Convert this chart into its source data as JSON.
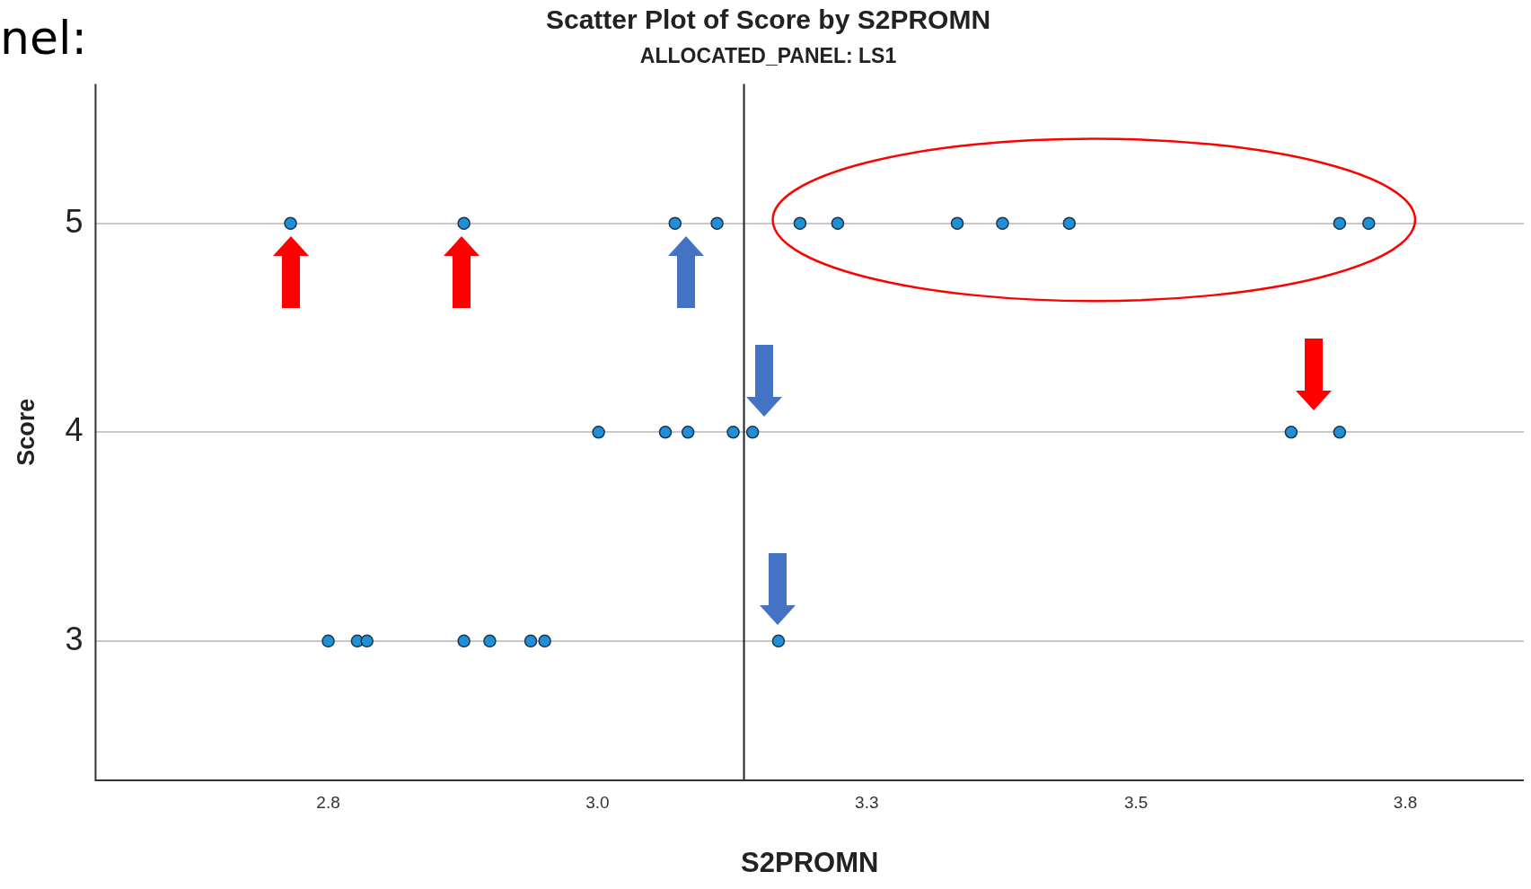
{
  "chart_data": {
    "type": "scatter",
    "title": "Scatter Plot of Score by S2PROMN",
    "subtitle": "ALLOCATED_PANEL: LS1",
    "xlabel": "S2PROMN",
    "ylabel": "Score",
    "annotations": [
      "nel:"
    ],
    "series": [
      {
        "color": "#1f8fd6",
        "x": [
          2.715,
          2.876,
          3.072,
          3.111,
          3.188,
          3.223,
          3.334,
          3.376,
          3.438,
          3.689,
          3.716,
          3.001,
          3.063,
          3.084,
          3.126,
          3.144,
          3.644,
          3.689,
          2.75,
          2.777,
          2.786,
          2.876,
          2.9,
          2.938,
          2.951,
          3.168
        ],
        "values": [
          5,
          5,
          5,
          5,
          5,
          5,
          5,
          5,
          5,
          5,
          5,
          4,
          4,
          4,
          4,
          4,
          4,
          4,
          3,
          3,
          3,
          3,
          3,
          3,
          3,
          3
        ]
      }
    ],
    "xlim": [
      2.534,
      3.86
    ],
    "xticks": [
      {
        "value": 2.75,
        "label": "2.8"
      },
      {
        "value": 3.0,
        "label": "3.0"
      },
      {
        "value": 3.25,
        "label": "3.3"
      },
      {
        "value": 3.5,
        "label": "3.5"
      },
      {
        "value": 3.75,
        "label": "3.8"
      }
    ],
    "ylim": [
      2.333,
      5.667
    ],
    "yticks": [
      3,
      4,
      5
    ],
    "ref_lines": [
      {
        "axis": "x",
        "value": 3.136,
        "color": "#222222"
      }
    ],
    "grid": "y",
    "marker": "circle",
    "legend": false
  }
}
